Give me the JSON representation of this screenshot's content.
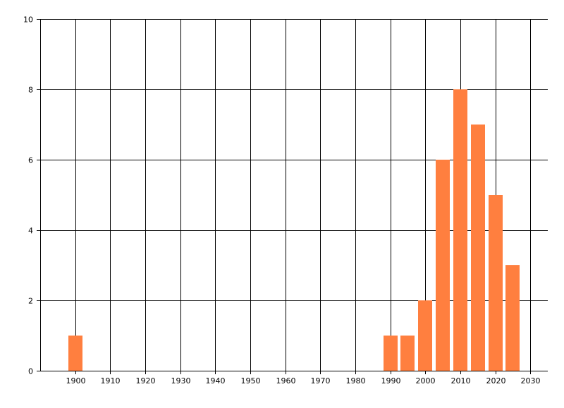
{
  "chart_data": {
    "type": "bar",
    "title": "",
    "xlabel": "",
    "ylabel": "",
    "x": [
      1900,
      1990,
      1995,
      2000,
      2005,
      2010,
      2015,
      2020,
      2025
    ],
    "values": [
      1,
      1,
      1,
      2,
      6,
      8,
      7,
      5,
      3
    ],
    "bar_width_years": 4,
    "xlim": [
      1890,
      2035
    ],
    "ylim": [
      0,
      10
    ],
    "x_ticks": [
      1900,
      1910,
      1920,
      1930,
      1940,
      1950,
      1960,
      1970,
      1980,
      1990,
      2000,
      2010,
      2020,
      2030
    ],
    "y_ticks": [
      0,
      2,
      4,
      6,
      8,
      10
    ],
    "grid": true,
    "bar_color": "#FF7F3F",
    "grid_color": "#000000"
  }
}
